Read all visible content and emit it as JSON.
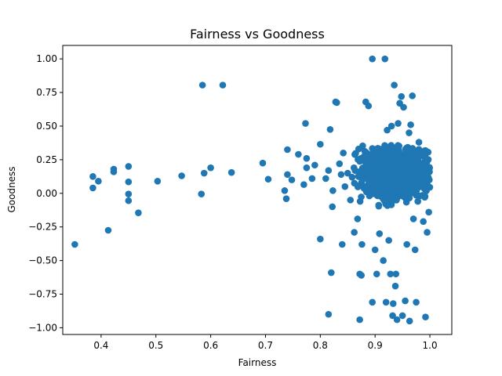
{
  "chart_data": {
    "type": "scatter",
    "title": "Fairness vs Goodness",
    "xlabel": "Fairness",
    "ylabel": "Goodness",
    "xlim": [
      0.33,
      1.04
    ],
    "ylim": [
      -1.05,
      1.1
    ],
    "xticks": [
      0.4,
      0.5,
      0.6,
      0.7,
      0.8,
      0.9,
      1.0
    ],
    "xtick_labels": [
      "0.4",
      "0.5",
      "0.6",
      "0.7",
      "0.8",
      "0.9",
      "1.0"
    ],
    "yticks": [
      -1.0,
      -0.75,
      -0.5,
      -0.25,
      0.0,
      0.25,
      0.5,
      0.75,
      1.0
    ],
    "ytick_labels": [
      "−1.00",
      "−0.75",
      "−0.50",
      "−0.25",
      "0.00",
      "0.25",
      "0.50",
      "0.75",
      "1.00"
    ],
    "grid": false,
    "marker_color": "#1f77b4",
    "points": [
      [
        0.352,
        -0.38
      ],
      [
        0.385,
        0.125
      ],
      [
        0.385,
        0.04
      ],
      [
        0.395,
        0.09
      ],
      [
        0.413,
        -0.275
      ],
      [
        0.423,
        0.18
      ],
      [
        0.423,
        0.16
      ],
      [
        0.45,
        0.2
      ],
      [
        0.45,
        0.085
      ],
      [
        0.45,
        -0.005
      ],
      [
        0.45,
        -0.055
      ],
      [
        0.468,
        -0.145
      ],
      [
        0.503,
        0.09
      ],
      [
        0.547,
        0.13
      ],
      [
        0.583,
        -0.005
      ],
      [
        0.585,
        0.805
      ],
      [
        0.588,
        0.15
      ],
      [
        0.6,
        0.19
      ],
      [
        0.622,
        0.805
      ],
      [
        0.638,
        0.155
      ],
      [
        0.695,
        0.225
      ],
      [
        0.705,
        0.105
      ],
      [
        0.735,
        0.02
      ],
      [
        0.738,
        -0.04
      ],
      [
        0.74,
        0.325
      ],
      [
        0.74,
        0.14
      ],
      [
        0.748,
        0.1
      ],
      [
        0.76,
        0.29
      ],
      [
        0.77,
        0.065
      ],
      [
        0.773,
        0.52
      ],
      [
        0.775,
        0.26
      ],
      [
        0.775,
        0.19
      ],
      [
        0.785,
        0.11
      ],
      [
        0.79,
        0.21
      ],
      [
        0.8,
        0.365
      ],
      [
        0.8,
        -0.34
      ],
      [
        0.81,
        0.11
      ],
      [
        0.815,
        0.17
      ],
      [
        0.815,
        -0.9
      ],
      [
        0.818,
        0.475
      ],
      [
        0.82,
        -0.59
      ],
      [
        0.822,
        -0.1
      ],
      [
        0.823,
        0.02
      ],
      [
        0.828,
        0.68
      ],
      [
        0.83,
        0.675
      ],
      [
        0.835,
        0.22
      ],
      [
        0.838,
        0.14
      ],
      [
        0.84,
        -0.38
      ],
      [
        0.842,
        0.3
      ],
      [
        0.845,
        0.05
      ],
      [
        0.85,
        0.15
      ],
      [
        0.855,
        -0.05
      ],
      [
        0.858,
        0.12
      ],
      [
        0.862,
        -0.29
      ],
      [
        0.868,
        -0.19
      ],
      [
        0.87,
        0.33
      ],
      [
        0.872,
        -0.6
      ],
      [
        0.872,
        -0.94
      ],
      [
        0.875,
        -0.61
      ],
      [
        0.876,
        -0.38
      ],
      [
        0.878,
        0.18
      ],
      [
        0.883,
        0.68
      ],
      [
        0.888,
        0.65
      ],
      [
        0.89,
        0.07
      ],
      [
        0.895,
        1.0
      ],
      [
        0.895,
        -0.81
      ],
      [
        0.9,
        -0.42
      ],
      [
        0.903,
        -0.6
      ],
      [
        0.908,
        -0.3
      ],
      [
        0.912,
        0.3
      ],
      [
        0.915,
        -0.5
      ],
      [
        0.918,
        1.0
      ],
      [
        0.92,
        -0.81
      ],
      [
        0.922,
        0.47
      ],
      [
        0.925,
        -0.35
      ],
      [
        0.928,
        -0.6
      ],
      [
        0.93,
        0.5
      ],
      [
        0.932,
        -0.91
      ],
      [
        0.933,
        -0.82
      ],
      [
        0.935,
        0.805
      ],
      [
        0.937,
        -0.69
      ],
      [
        0.938,
        -0.6
      ],
      [
        0.94,
        -0.94
      ],
      [
        0.942,
        0.52
      ],
      [
        0.945,
        0.67
      ],
      [
        0.948,
        0.72
      ],
      [
        0.95,
        -0.91
      ],
      [
        0.952,
        0.64
      ],
      [
        0.955,
        -0.8
      ],
      [
        0.958,
        -0.38
      ],
      [
        0.962,
        0.45
      ],
      [
        0.963,
        -0.95
      ],
      [
        0.965,
        0.51
      ],
      [
        0.968,
        0.725
      ],
      [
        0.97,
        -0.19
      ],
      [
        0.973,
        -0.42
      ],
      [
        0.975,
        -0.81
      ],
      [
        0.978,
        -0.06
      ],
      [
        0.98,
        0.38
      ],
      [
        0.985,
        0.29
      ],
      [
        0.988,
        -0.21
      ],
      [
        0.992,
        -0.92
      ],
      [
        0.995,
        -0.29
      ],
      [
        0.998,
        -0.14
      ],
      [
        0.999,
        0.1
      ]
    ],
    "cluster": {
      "x_center": 0.935,
      "x_spread": 0.05,
      "y_center": 0.15,
      "y_spread": 0.11,
      "count": 1300
    }
  }
}
